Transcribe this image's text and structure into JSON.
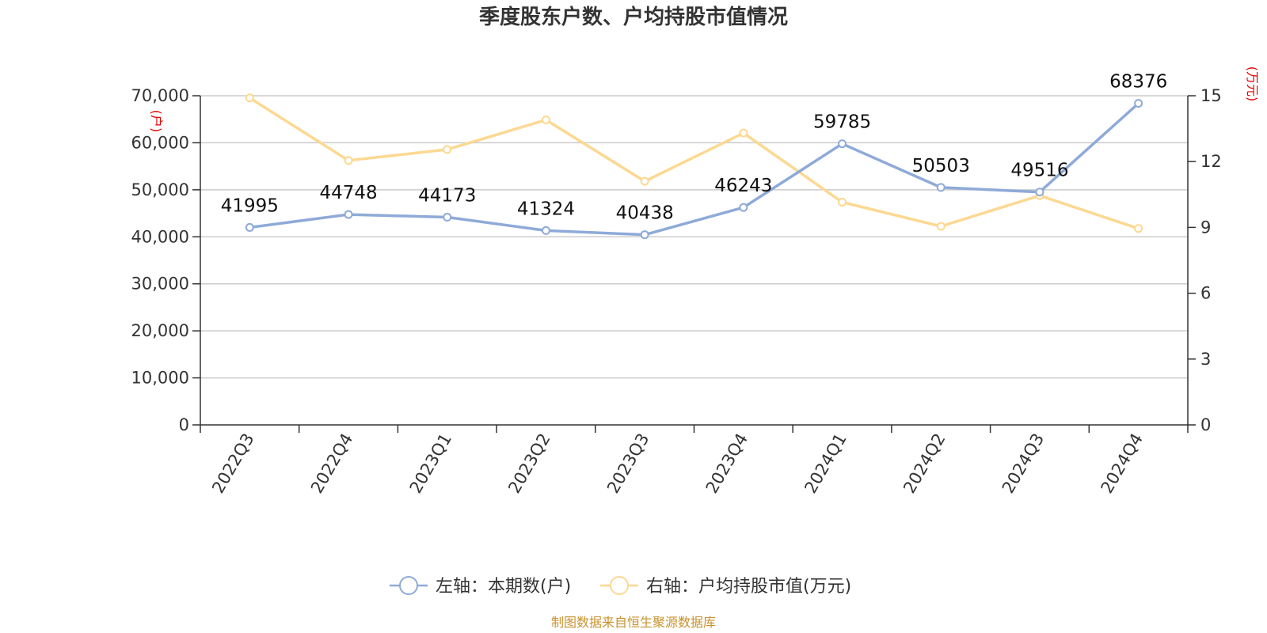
{
  "chart_data": {
    "type": "line",
    "title": "季度股东户数、户均持股市值情况",
    "categories": [
      "2022Q3",
      "2022Q4",
      "2023Q1",
      "2023Q2",
      "2023Q3",
      "2023Q4",
      "2024Q1",
      "2024Q2",
      "2024Q3",
      "2024Q4"
    ],
    "left_axis": {
      "unit": "(户)",
      "ylim": [
        0,
        70000
      ],
      "ticks": [
        0,
        10000,
        20000,
        30000,
        40000,
        50000,
        60000,
        70000
      ],
      "tick_labels": [
        "0",
        "10,000",
        "20,000",
        "30,000",
        "40,000",
        "50,000",
        "60,000",
        "70,000"
      ]
    },
    "right_axis": {
      "unit": "(万元)",
      "ylim": [
        0,
        15
      ],
      "ticks": [
        0,
        3,
        6,
        9,
        12,
        15
      ],
      "tick_labels": [
        "0",
        "3",
        "6",
        "9",
        "12",
        "15"
      ]
    },
    "series": [
      {
        "name": "左轴：本期数(户)",
        "axis": "left",
        "color": "#8eaad8",
        "values": [
          41995,
          44748,
          44173,
          41324,
          40438,
          46243,
          59785,
          50503,
          49516,
          68376
        ],
        "labels": [
          "41995",
          "44748",
          "44173",
          "41324",
          "40438",
          "46243",
          "59785",
          "50503",
          "49516",
          "68376"
        ]
      },
      {
        "name": "右轴：户均持股市值(万元)",
        "axis": "right",
        "color": "#fcd891",
        "values": [
          14.9,
          12.05,
          12.55,
          13.9,
          11.1,
          13.3,
          10.15,
          9.05,
          10.45,
          8.95
        ]
      }
    ],
    "grid": true,
    "legend_position": "bottom-center"
  },
  "source_text": "制图数据来自恒生聚源数据库"
}
